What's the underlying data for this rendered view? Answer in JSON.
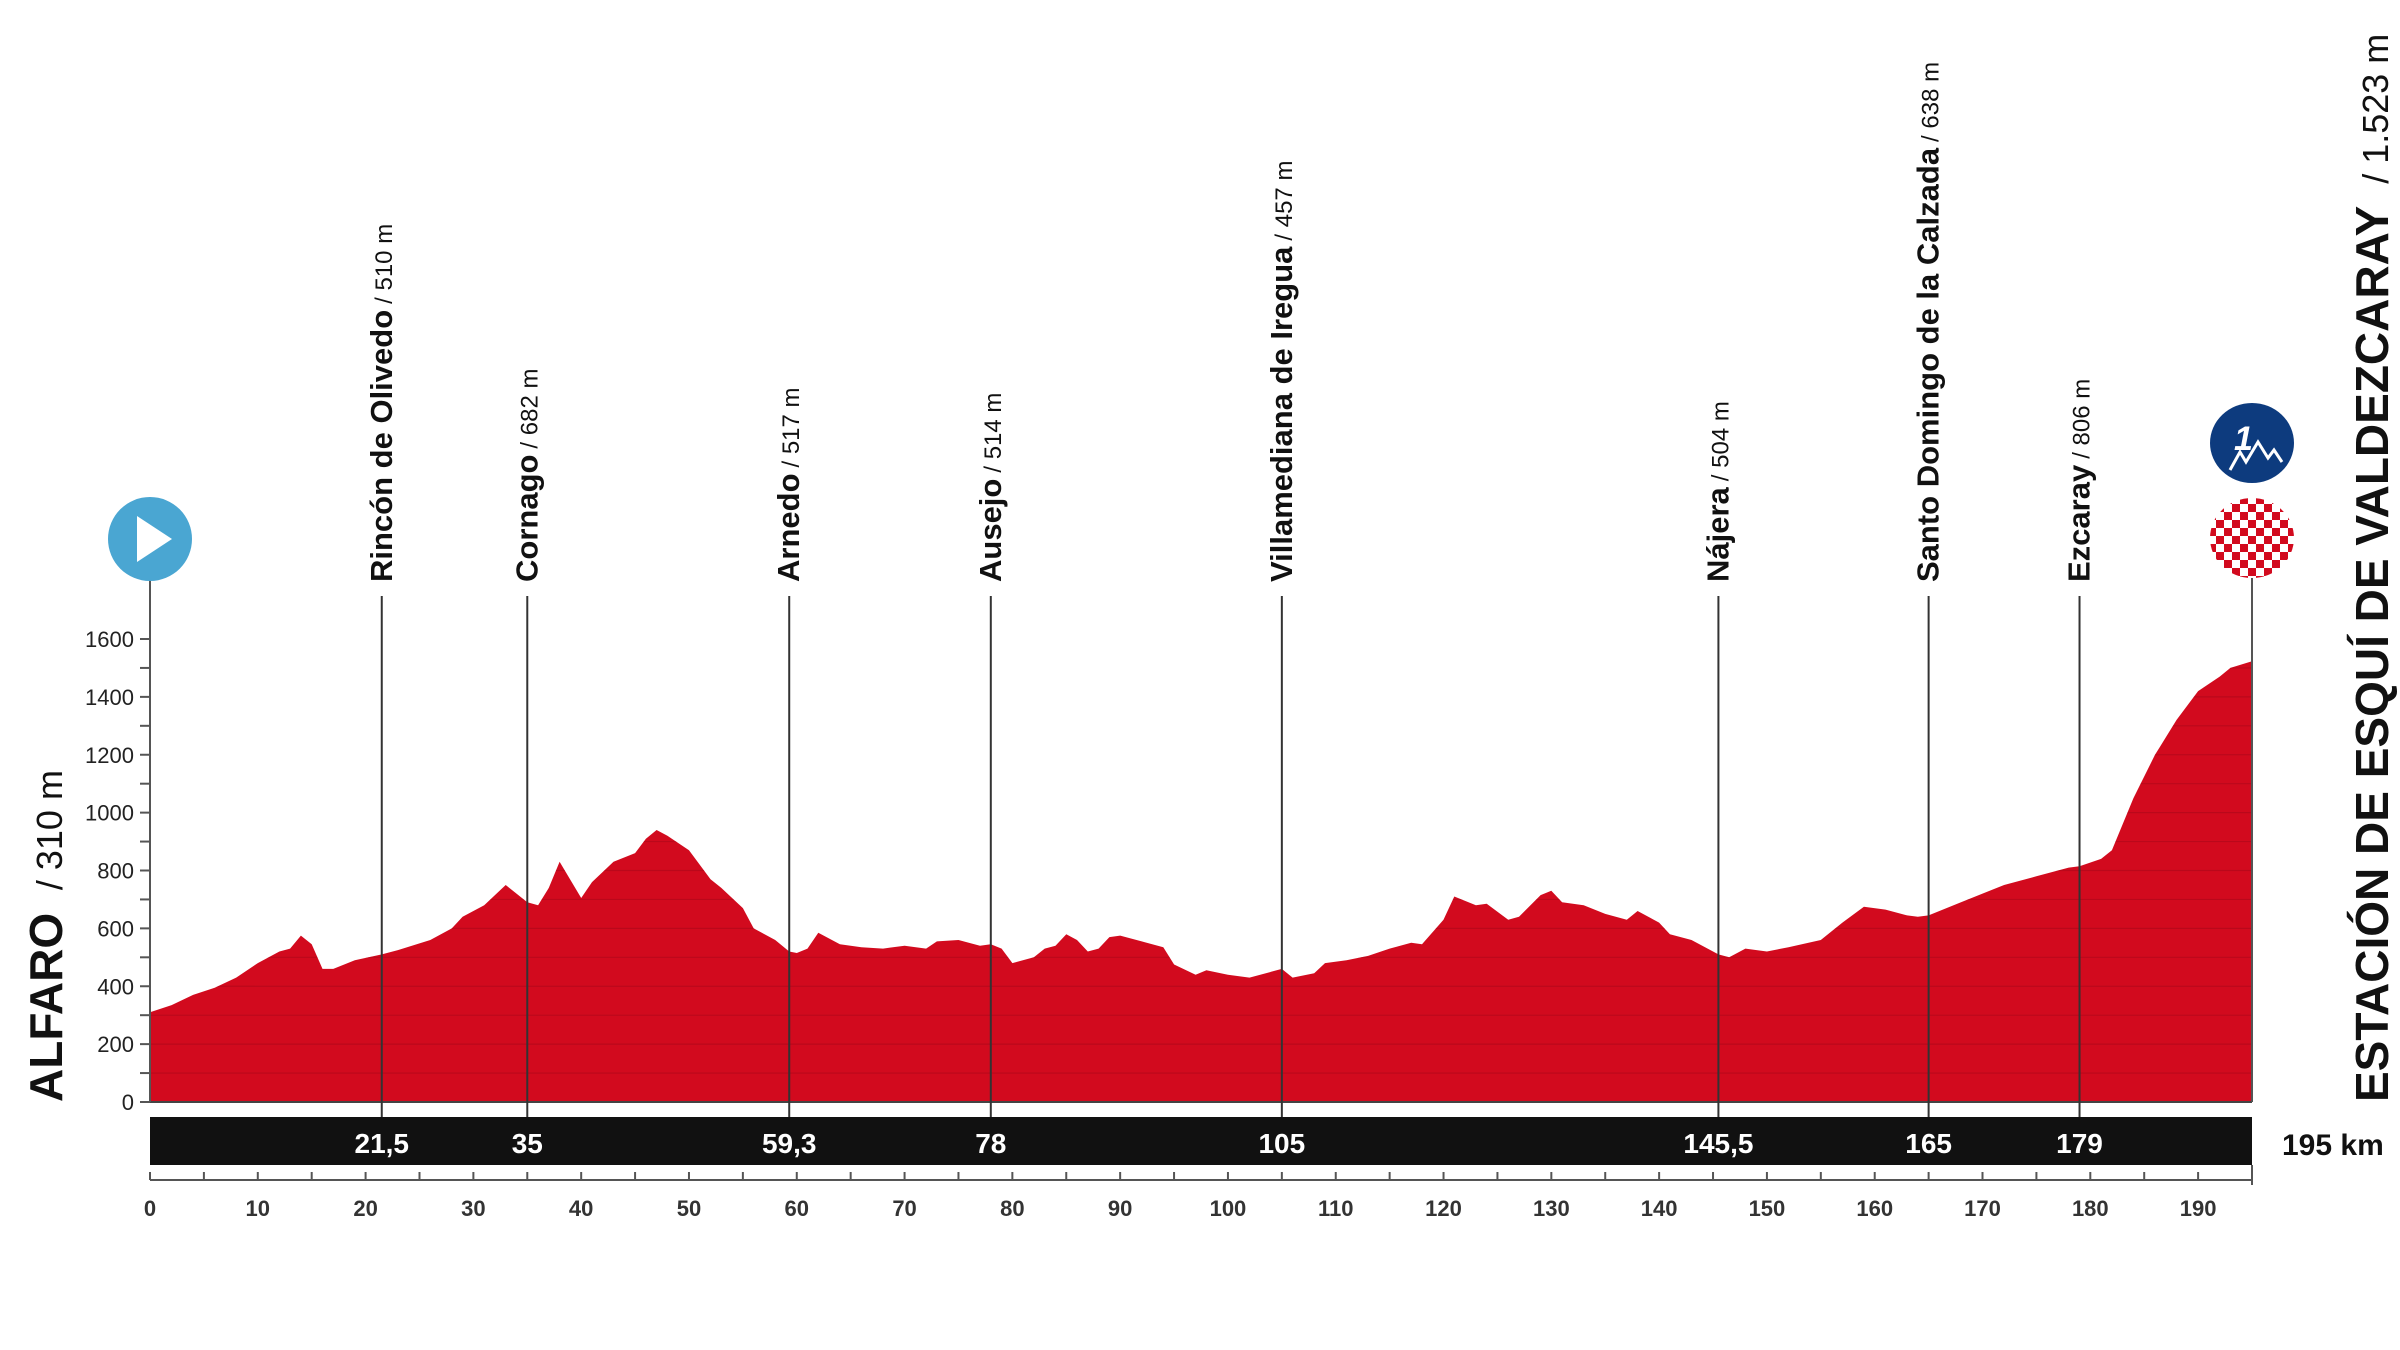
{
  "chart_data": {
    "type": "area",
    "title": "",
    "xlabel": "",
    "ylabel": "",
    "xunit": "km",
    "yunit": "m",
    "xlim": [
      0,
      195
    ],
    "ylim": [
      0,
      1600
    ],
    "x_ticks": [
      0,
      10,
      20,
      30,
      40,
      50,
      60,
      70,
      80,
      90,
      100,
      110,
      120,
      130,
      140,
      150,
      160,
      170,
      180,
      190
    ],
    "y_ticks": [
      0,
      200,
      400,
      600,
      800,
      1000,
      1200,
      1400,
      1600
    ],
    "total_distance_label": "195 km",
    "start": {
      "name": "ALFARO",
      "altitude": "/ 310 m"
    },
    "finish": {
      "name": "ESTACIÓN DE ESQUÍ DE VALDEZCARAY",
      "altitude": "/ 1.523 m",
      "climb_category": "1"
    },
    "points": [
      {
        "name": "Rincón de Olivedo",
        "altitude": "/ 510 m",
        "km": 21.5,
        "km_label": "21,5"
      },
      {
        "name": "Cornago",
        "altitude": "/ 682 m",
        "km": 35,
        "km_label": "35"
      },
      {
        "name": "Arnedo",
        "altitude": "/ 517 m",
        "km": 59.3,
        "km_label": "59,3"
      },
      {
        "name": "Ausejo",
        "altitude": "/ 514 m",
        "km": 78,
        "km_label": "78"
      },
      {
        "name": "Villamediana de Iregua",
        "altitude": "/ 457 m",
        "km": 105,
        "km_label": "105"
      },
      {
        "name": "Nájera",
        "altitude": "/ 504 m",
        "km": 145.5,
        "km_label": "145,5"
      },
      {
        "name": "Santo Domingo de la Calzada",
        "altitude": "/ 638 m",
        "km": 165,
        "km_label": "165"
      },
      {
        "name": "Ezcaray",
        "altitude": "/ 806 m",
        "km": 179,
        "km_label": "179"
      }
    ],
    "profile": [
      [
        0,
        310
      ],
      [
        2,
        335
      ],
      [
        4,
        370
      ],
      [
        6,
        395
      ],
      [
        8,
        430
      ],
      [
        10,
        480
      ],
      [
        12,
        520
      ],
      [
        13,
        530
      ],
      [
        14,
        575
      ],
      [
        15,
        545
      ],
      [
        16,
        460
      ],
      [
        17,
        460
      ],
      [
        19,
        490
      ],
      [
        21.5,
        510
      ],
      [
        23,
        525
      ],
      [
        26,
        560
      ],
      [
        28,
        600
      ],
      [
        29,
        640
      ],
      [
        31,
        680
      ],
      [
        33,
        750
      ],
      [
        35,
        690
      ],
      [
        36,
        680
      ],
      [
        37,
        740
      ],
      [
        38,
        830
      ],
      [
        40,
        705
      ],
      [
        41,
        760
      ],
      [
        43,
        830
      ],
      [
        45,
        860
      ],
      [
        46,
        910
      ],
      [
        47,
        940
      ],
      [
        48,
        920
      ],
      [
        50,
        870
      ],
      [
        52,
        770
      ],
      [
        53,
        740
      ],
      [
        55,
        670
      ],
      [
        56,
        600
      ],
      [
        58,
        560
      ],
      [
        59.3,
        520
      ],
      [
        60,
        515
      ],
      [
        61,
        530
      ],
      [
        62,
        585
      ],
      [
        64,
        545
      ],
      [
        66,
        535
      ],
      [
        68,
        530
      ],
      [
        70,
        540
      ],
      [
        72,
        530
      ],
      [
        73,
        555
      ],
      [
        75,
        560
      ],
      [
        77,
        540
      ],
      [
        78,
        545
      ],
      [
        79,
        530
      ],
      [
        80,
        480
      ],
      [
        82,
        500
      ],
      [
        83,
        530
      ],
      [
        84,
        540
      ],
      [
        85,
        580
      ],
      [
        86,
        560
      ],
      [
        87,
        520
      ],
      [
        88,
        530
      ],
      [
        89,
        570
      ],
      [
        90,
        575
      ],
      [
        92,
        555
      ],
      [
        94,
        535
      ],
      [
        95,
        475
      ],
      [
        97,
        440
      ],
      [
        98,
        455
      ],
      [
        100,
        440
      ],
      [
        102,
        430
      ],
      [
        104,
        450
      ],
      [
        105,
        460
      ],
      [
        106,
        430
      ],
      [
        108,
        445
      ],
      [
        109,
        480
      ],
      [
        111,
        490
      ],
      [
        113,
        505
      ],
      [
        115,
        530
      ],
      [
        117,
        550
      ],
      [
        118,
        545
      ],
      [
        120,
        630
      ],
      [
        121,
        710
      ],
      [
        123,
        680
      ],
      [
        124,
        685
      ],
      [
        126,
        630
      ],
      [
        127,
        640
      ],
      [
        129,
        715
      ],
      [
        130,
        730
      ],
      [
        131,
        690
      ],
      [
        133,
        680
      ],
      [
        135,
        650
      ],
      [
        137,
        630
      ],
      [
        138,
        660
      ],
      [
        140,
        620
      ],
      [
        141,
        580
      ],
      [
        143,
        560
      ],
      [
        145.5,
        510
      ],
      [
        146.5,
        500
      ],
      [
        148,
        530
      ],
      [
        150,
        520
      ],
      [
        152,
        535
      ],
      [
        155,
        560
      ],
      [
        157,
        620
      ],
      [
        159,
        675
      ],
      [
        161,
        665
      ],
      [
        163,
        645
      ],
      [
        164,
        640
      ],
      [
        165,
        645
      ],
      [
        168,
        690
      ],
      [
        170,
        720
      ],
      [
        172,
        750
      ],
      [
        175,
        780
      ],
      [
        178,
        810
      ],
      [
        179,
        815
      ],
      [
        181,
        840
      ],
      [
        182,
        870
      ],
      [
        184,
        1050
      ],
      [
        186,
        1200
      ],
      [
        188,
        1320
      ],
      [
        190,
        1420
      ],
      [
        192,
        1470
      ],
      [
        193,
        1500
      ],
      [
        195,
        1523
      ]
    ],
    "colors": {
      "profile": "#d20a1e",
      "bar": "#111111",
      "start_icon": "#4aa6d2",
      "climb_icon": "#0d3b7e",
      "finish_check": "#d20a1e"
    }
  }
}
